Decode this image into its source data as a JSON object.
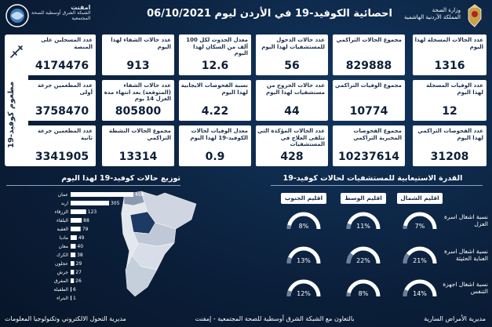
{
  "header": {
    "title": "احصائية الكوفيد-19 في الأردن ليوم 06/10/2021",
    "ministry_line1": "وزارة الصحة",
    "ministry_line2": "المملكة الأردنية الهاشمية",
    "left_logo_name": "امفنت",
    "left_logo_sub1": "الشبكة الشرق أوسطية للصحة",
    "left_logo_sub2": "المجتمعية"
  },
  "vaccine": {
    "title": "مطعوم كوفيد-19",
    "boxes": [
      {
        "label": "عدد المسجلين على المنصة",
        "value": "4174476"
      },
      {
        "label": "عدد المطعمين جرعة أولى",
        "value": "3758470"
      },
      {
        "label": "عدد المطعمين جرعة ثانية",
        "value": "3341905"
      }
    ]
  },
  "stats": {
    "row1": [
      {
        "label": "عدد حالات الشفاء لهذا اليوم",
        "value": "913"
      },
      {
        "label": "معدل الحدوث لكل 100 ألف من السكان لهذا اليوم",
        "value": "12.6"
      },
      {
        "label": "عدد حالات الدخول للمستشفيات لهذا اليوم",
        "value": "56"
      },
      {
        "label": "مجموع الحالات التراكمي",
        "value": "829888"
      },
      {
        "label": "عدد الحالات المسجلة لهذا اليوم",
        "value": "1316"
      }
    ],
    "row2": [
      {
        "label": "عدد حالات الشفاء (المتوقعة) بعد انتهاء مدة العزل 14 يوم",
        "value": "805800"
      },
      {
        "label": "نسبة الفحوصات الايجابية لهذا اليوم",
        "value": "4.22"
      },
      {
        "label": "عدد حالات الخروج من مستشفيات لهذا اليوم",
        "value": "44"
      },
      {
        "label": "مجموع الوفيات التراكمي",
        "value": "10774"
      },
      {
        "label": "عدد الوفيات المسجلة لهذا اليوم",
        "value": "12"
      }
    ],
    "row3": [
      {
        "label": "مجموع الحالات النشطة التراكمي",
        "value": "13314"
      },
      {
        "label": "معدل الوفيات لحالات الكوفيد-19 لهذا اليوم",
        "value": "0.9"
      },
      {
        "label": "عدد الحالات المؤكدة التي تتلقى العلاج في المستشفيات",
        "value": "428"
      },
      {
        "label": "مجموع الفحوصات المخبرية التراكمي",
        "value": "10237614"
      },
      {
        "label": "عدد الفحوصات التراكمي لهذا اليوم",
        "value": "31208"
      }
    ]
  },
  "distribution": {
    "title": "توزيع حالات كوفيد-19 لهذا اليوم",
    "items": [
      {
        "name": "عمان",
        "value": 498
      },
      {
        "name": "اربد",
        "value": 305
      },
      {
        "name": "الزرقاء",
        "value": 123
      },
      {
        "name": "البلقاء",
        "value": 88
      },
      {
        "name": "العقبة",
        "value": 79
      },
      {
        "name": "مادبا",
        "value": 49
      },
      {
        "name": "معان",
        "value": 40
      },
      {
        "name": "الكرك",
        "value": 38
      },
      {
        "name": "عجلون",
        "value": 29
      },
      {
        "name": "جرش",
        "value": 27
      },
      {
        "name": "المفرق",
        "value": 26
      },
      {
        "name": "الطفيلة",
        "value": 6
      },
      {
        "name": "البتراء",
        "value": 1
      }
    ]
  },
  "capacity": {
    "title": "القدرة الاستيعابية للمستشفيات لحالات كوفيد-19",
    "regions": [
      "اقليم الشمال",
      "اقليم الوسط",
      "اقليم الجنوب"
    ],
    "rows": [
      {
        "label": "نسبة اشغال اسرة العزل",
        "values": [
          7,
          11,
          8
        ]
      },
      {
        "label": "نسبة اشغال اسرة العناية الحثيثة",
        "values": [
          21,
          22,
          13
        ]
      },
      {
        "label": "نسبة اشغال اجهزة التنفس",
        "values": [
          14,
          8,
          12
        ]
      }
    ],
    "gauge_color": "#ffffff",
    "gauge_track": "#6b7f99"
  },
  "footer": {
    "right": "مديرية الأمراض السارية",
    "middle": "بالتعاون مع الشبكة الشرق أوسطية للصحة المجتمعية - إمفنت",
    "left": "مديرية التحول الالكتروني وتكنولوجيا المعلومات"
  }
}
